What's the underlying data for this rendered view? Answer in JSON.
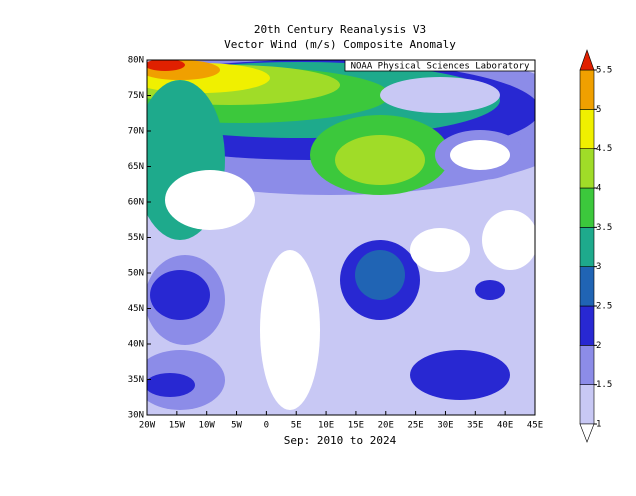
{
  "chart_data": {
    "type": "map",
    "title": "20th Century Reanalysis V3",
    "subtitle": "Vector Wind (m/s) Composite Anomaly",
    "credit": "NOAA Physical Sciences Laboratory",
    "period": "Sep: 2010 to 2024",
    "xlim": [
      -20,
      45
    ],
    "ylim": [
      30,
      80
    ],
    "xticks": [
      {
        "value": -20,
        "label": "20W"
      },
      {
        "value": -15,
        "label": "15W"
      },
      {
        "value": -10,
        "label": "10W"
      },
      {
        "value": -5,
        "label": "5W"
      },
      0,
      {
        "value": 5,
        "label": "5E"
      },
      {
        "value": 10,
        "label": "10E"
      },
      {
        "value": 15,
        "label": "15E"
      },
      {
        "value": 20,
        "label": "20E"
      },
      {
        "value": 25,
        "label": "25E"
      },
      {
        "value": 30,
        "label": "30E"
      },
      {
        "value": 35,
        "label": "35E"
      },
      {
        "value": 40,
        "label": "40E"
      },
      {
        "value": 45,
        "label": "45E"
      }
    ],
    "yticks": [
      {
        "value": 30,
        "label": "30N"
      },
      {
        "value": 35,
        "label": "35N"
      },
      {
        "value": 40,
        "label": "40N"
      },
      {
        "value": 45,
        "label": "45N"
      },
      {
        "value": 50,
        "label": "50N"
      },
      {
        "value": 55,
        "label": "55N"
      },
      {
        "value": 60,
        "label": "60N"
      },
      {
        "value": 65,
        "label": "65N"
      },
      {
        "value": 70,
        "label": "70N"
      },
      {
        "value": 75,
        "label": "75N"
      },
      {
        "value": 80,
        "label": "80N"
      }
    ],
    "colorbar": {
      "ticks": [
        1,
        1.5,
        2,
        2.5,
        3,
        3.5,
        4,
        4.5,
        5,
        5.5
      ],
      "colors": [
        "#ffffff",
        "#c8c8f4",
        "#8c8ce8",
        "#2828d2",
        "#2064b4",
        "#1eaa8c",
        "#3cc83c",
        "#a0dc28",
        "#f0f000",
        "#f0a000",
        "#e02000"
      ]
    }
  }
}
